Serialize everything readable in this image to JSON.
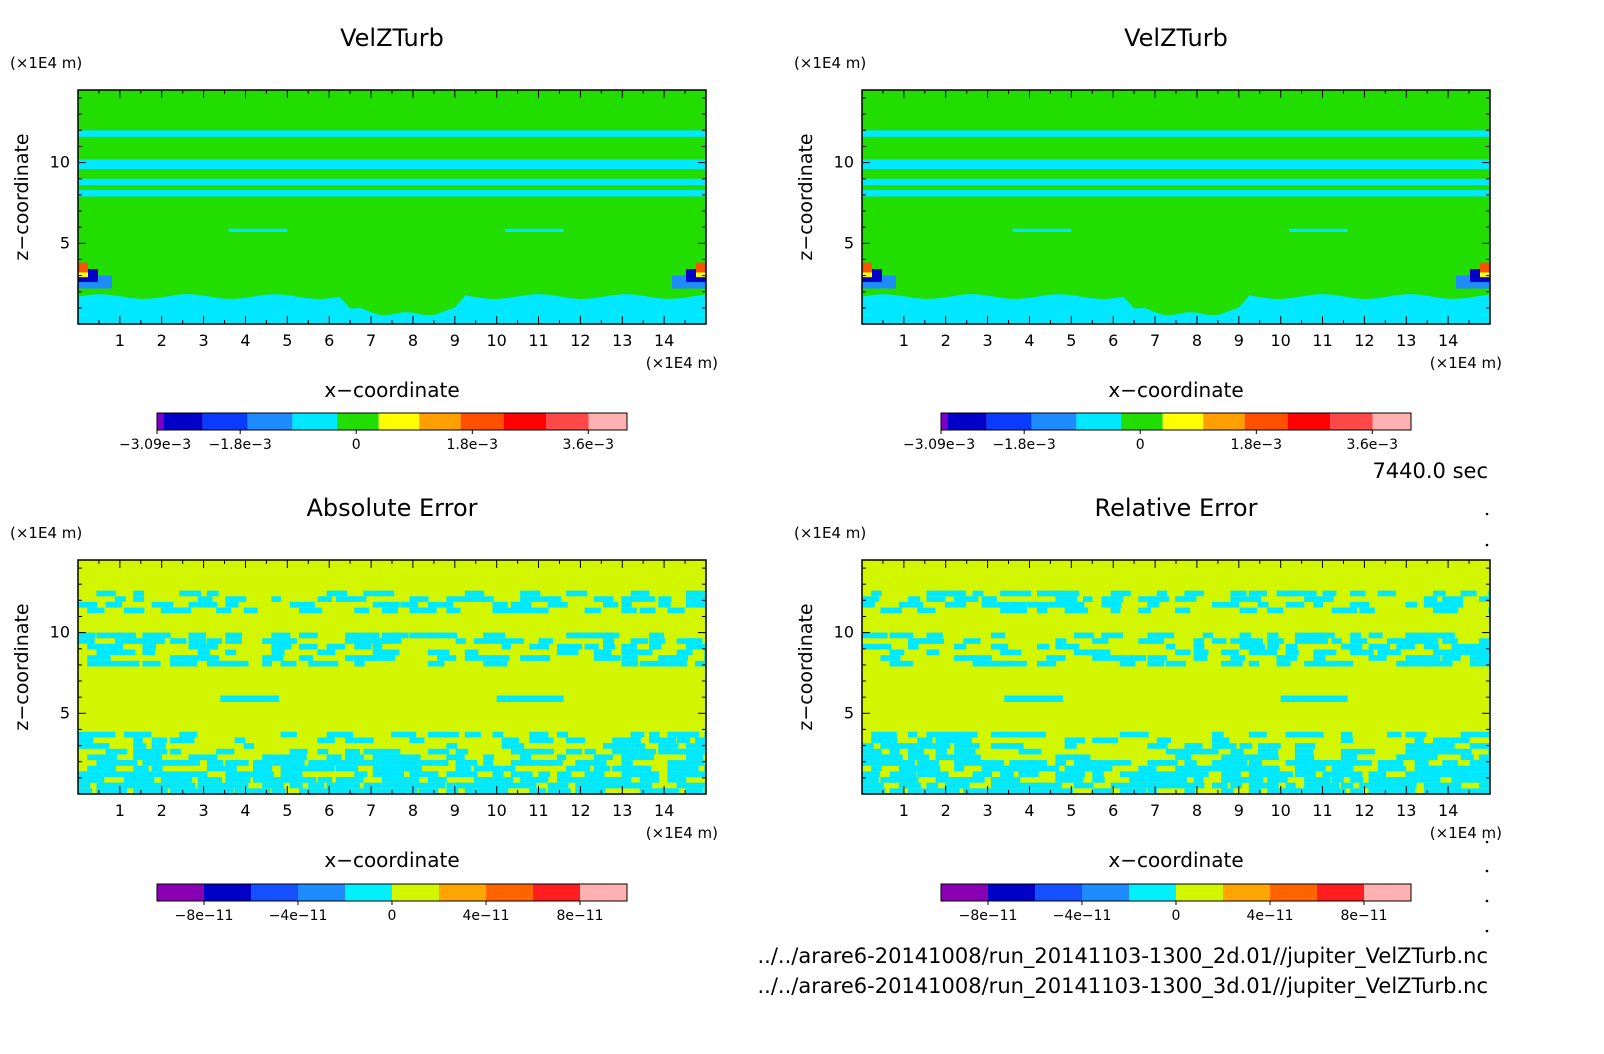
{
  "time_label": "7440.0 sec",
  "footer": {
    "file_2d": "../../arare6-20141008/run_20141103-1300_2d.01//jupiter_VelZTurb.nc",
    "file_3d": "../../arare6-20141008/run_20141103-1300_3d.01//jupiter_VelZTurb.nc"
  },
  "colors": {
    "velz_levels": [
      "#7b00c8",
      "#0000c8",
      "#0a3cff",
      "#1e8cff",
      "#00e8ff",
      "#22dd00",
      "#ffff00",
      "#ffa000",
      "#ff5000",
      "#ff0000",
      "#ff4848",
      "#ffb0b0"
    ],
    "err_levels": [
      "#8a00b4",
      "#0000c8",
      "#1450ff",
      "#1e8cff",
      "#00f0ff",
      "#d2f500",
      "#ffa500",
      "#ff6400",
      "#ff1e1e",
      "#ffb0b0"
    ]
  },
  "chart_data": [
    {
      "type": "heatmap",
      "title": "VelZTurb",
      "xlabel": "x−coordinate",
      "ylabel": "z−coordinate",
      "x_unit": "(×1E4 m)",
      "y_unit": "(×1E4 m)",
      "xlim": [
        0,
        15
      ],
      "ylim": [
        0,
        14.5
      ],
      "xticks": [
        "1",
        "2",
        "3",
        "4",
        "5",
        "6",
        "7",
        "8",
        "9",
        "10",
        "11",
        "12",
        "13",
        "14"
      ],
      "yticks": [
        "5",
        "10"
      ],
      "colorbar_labels": [
        "−3.09e−3",
        "−1.8e−3",
        "0",
        "1.8e−3",
        "3.6e−3"
      ],
      "colorbar_range": [
        -0.00309,
        0.0042
      ],
      "background_color": "#22dd00"
    },
    {
      "type": "heatmap",
      "title": "VelZTurb",
      "xlabel": "x−coordinate",
      "ylabel": "z−coordinate",
      "x_unit": "(×1E4 m)",
      "y_unit": "(×1E4 m)",
      "xlim": [
        0,
        15
      ],
      "ylim": [
        0,
        14.5
      ],
      "xticks": [
        "1",
        "2",
        "3",
        "4",
        "5",
        "6",
        "7",
        "8",
        "9",
        "10",
        "11",
        "12",
        "13",
        "14"
      ],
      "yticks": [
        "5",
        "10"
      ],
      "colorbar_labels": [
        "−3.09e−3",
        "−1.8e−3",
        "0",
        "1.8e−3",
        "3.6e−3"
      ],
      "colorbar_range": [
        -0.00309,
        0.0042
      ],
      "background_color": "#22dd00"
    },
    {
      "type": "heatmap",
      "title": "Absolute Error",
      "xlabel": "x−coordinate",
      "ylabel": "z−coordinate",
      "x_unit": "(×1E4 m)",
      "y_unit": "(×1E4 m)",
      "xlim": [
        0,
        15
      ],
      "ylim": [
        0,
        14.5
      ],
      "xticks": [
        "1",
        "2",
        "3",
        "4",
        "5",
        "6",
        "7",
        "8",
        "9",
        "10",
        "11",
        "12",
        "13",
        "14"
      ],
      "yticks": [
        "5",
        "10"
      ],
      "colorbar_labels": [
        "−8e−11",
        "−4e−11",
        "0",
        "4e−11",
        "8e−11"
      ],
      "colorbar_range": [
        -1e-10,
        1e-10
      ],
      "background_color": "#d2f500"
    },
    {
      "type": "heatmap",
      "title": "Relative Error",
      "xlabel": "x−coordinate",
      "ylabel": "z−coordinate",
      "x_unit": "(×1E4 m)",
      "y_unit": "(×1E4 m)",
      "xlim": [
        0,
        15
      ],
      "ylim": [
        0,
        14.5
      ],
      "xticks": [
        "1",
        "2",
        "3",
        "4",
        "5",
        "6",
        "7",
        "8",
        "9",
        "10",
        "11",
        "12",
        "13",
        "14"
      ],
      "yticks": [
        "5",
        "10"
      ],
      "colorbar_labels": [
        "−8e−11",
        "−4e−11",
        "0",
        "4e−11",
        "8e−11"
      ],
      "colorbar_range": [
        -1e-10,
        1e-10
      ],
      "background_color": "#d2f500"
    }
  ]
}
